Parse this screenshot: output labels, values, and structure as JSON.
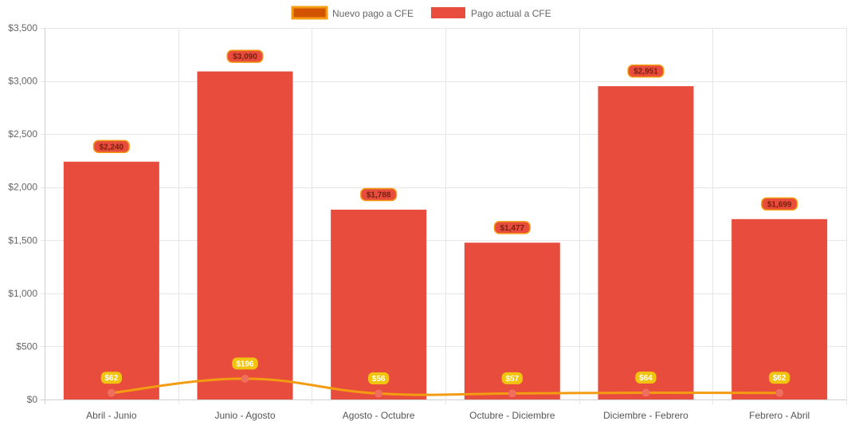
{
  "chart_data": {
    "type": "bar",
    "categories": [
      "Abril - Junio",
      "Junio - Agosto",
      "Agosto - Octubre",
      "Octubre - Diciembre",
      "Diciembre - Febrero",
      "Febrero - Abril"
    ],
    "series": [
      {
        "name": "Nuevo pago a CFE",
        "kind": "line",
        "values": [
          62,
          196,
          56,
          57,
          64,
          62
        ],
        "labels": [
          "$62",
          "$196",
          "$56",
          "$57",
          "$64",
          "$62"
        ],
        "color": "#f39c12",
        "point_color": "#ef6f5e",
        "label_bg": "#f1c40f",
        "legend_fill": "#d35400",
        "legend_stroke": "#f39c12"
      },
      {
        "name": "Pago actual a CFE",
        "kind": "bar",
        "values": [
          2240,
          3090,
          1788,
          1477,
          2951,
          1699
        ],
        "labels": [
          "$2,240",
          "$3,090",
          "$1,788",
          "$1,477",
          "$2,951",
          "$1,699"
        ],
        "color": "#e74c3c",
        "label_bg": "#e74c3c",
        "label_border": "#f39c12"
      }
    ],
    "yticks": [
      "$0",
      "$500",
      "$1,000",
      "$1,500",
      "$2,000",
      "$2,500",
      "$3,000",
      "$3,500"
    ],
    "ylim": [
      0,
      3500
    ],
    "ystep": 500,
    "title": "",
    "xlabel": "",
    "ylabel": "",
    "grid": true,
    "legend_position": "top-center"
  }
}
